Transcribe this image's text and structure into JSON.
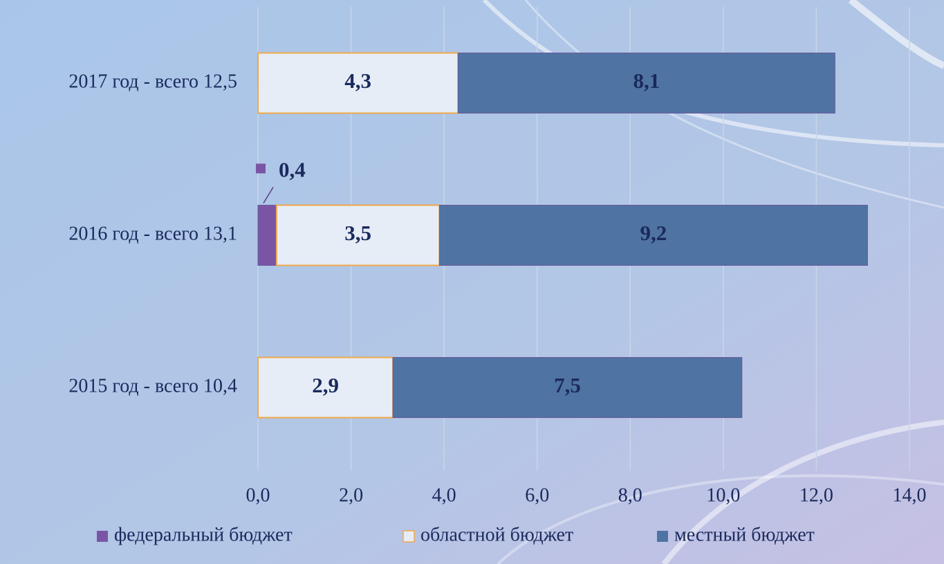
{
  "chart_data": {
    "type": "stacked-bar-horizontal",
    "categories": [
      "2017 год - всего 12,5",
      "2016 год - всего 13,1",
      "2015 год - всего 10,4"
    ],
    "series": [
      {
        "name": "федеральный бюджет",
        "color": "#7a55a6",
        "values": [
          null,
          0.4,
          null
        ],
        "value_labels": [
          null,
          "0,4",
          null
        ]
      },
      {
        "name": "областной бюджет",
        "color": "#e6edf7",
        "values": [
          4.3,
          3.5,
          2.9
        ],
        "value_labels": [
          "4,3",
          "3,5",
          "2,9"
        ]
      },
      {
        "name": "местный бюджет",
        "color": "#4f73a3",
        "values": [
          8.1,
          9.2,
          7.5
        ],
        "value_labels": [
          "8,1",
          "9,2",
          "7,5"
        ]
      }
    ],
    "xlim": [
      0,
      14
    ],
    "xticks": [
      {
        "value": 0,
        "label": "0,0"
      },
      {
        "value": 2,
        "label": "2,0"
      },
      {
        "value": 4,
        "label": "4,0"
      },
      {
        "value": 6,
        "label": "6,0"
      },
      {
        "value": 8,
        "label": "8,0"
      },
      {
        "value": 10,
        "label": "10,0"
      },
      {
        "value": 12,
        "label": "12,0"
      },
      {
        "value": 14,
        "label": "14,0"
      }
    ],
    "grid": true,
    "legend": "bottom"
  }
}
